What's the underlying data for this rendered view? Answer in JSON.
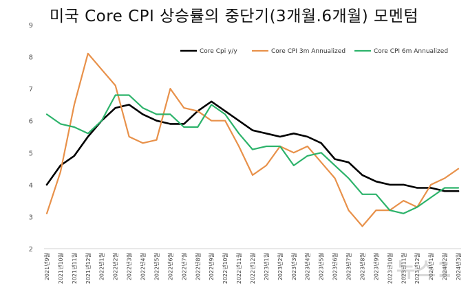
{
  "title": "미국 Core CPI 상승률의 중단기(3개월.6개월) 모멘텀",
  "watermark": "뉴스1",
  "chart_data": {
    "type": "line",
    "ylim": [
      2,
      9
    ],
    "yticks": [
      2,
      3,
      4,
      5,
      6,
      7,
      8,
      9
    ],
    "grid": false,
    "legend_position": "top-right",
    "categories": [
      "2021년9월",
      "2021년10월",
      "2021년11월",
      "2021년12월",
      "2022년1월",
      "2022년2월",
      "2022년3월",
      "2022년4월",
      "2022년5월",
      "2022년6월",
      "2022년7월",
      "2022년8월",
      "2022년9월",
      "2022년10월",
      "2022년11월",
      "2022년12월",
      "2023년1월",
      "2023년2월",
      "2023년3월",
      "2023년4월",
      "2023년5월",
      "2023년6월",
      "2023년7월",
      "2023년8월",
      "2023년9월",
      "2023년10월",
      "2023년11월",
      "2023년12월",
      "2024년1월",
      "2024년2월",
      "2024년3월"
    ],
    "series": [
      {
        "name": "Core Cpi y/y",
        "color": "#000000",
        "values": [
          4.0,
          4.6,
          4.9,
          5.5,
          6.0,
          6.4,
          6.5,
          6.2,
          6.0,
          5.9,
          5.9,
          6.3,
          6.6,
          6.3,
          6.0,
          5.7,
          5.6,
          5.5,
          5.6,
          5.5,
          5.3,
          4.8,
          4.7,
          4.3,
          4.1,
          4.0,
          4.0,
          3.9,
          3.9,
          3.8,
          3.8
        ]
      },
      {
        "name": "Core CPI 3m Annualized",
        "color": "#E8914A",
        "values": [
          3.1,
          4.4,
          6.5,
          8.1,
          7.6,
          7.1,
          5.5,
          5.3,
          5.4,
          7.0,
          6.4,
          6.3,
          6.0,
          6.0,
          5.2,
          4.3,
          4.6,
          5.2,
          5.0,
          5.2,
          4.7,
          4.2,
          3.2,
          2.7,
          3.2,
          3.2,
          3.5,
          3.3,
          4.0,
          4.2,
          4.5
        ]
      },
      {
        "name": "Core CPI 6m Annualized",
        "color": "#2DB36B",
        "values": [
          6.2,
          5.9,
          5.8,
          5.6,
          6.0,
          6.8,
          6.8,
          6.4,
          6.2,
          6.2,
          5.8,
          5.8,
          6.5,
          6.2,
          5.6,
          5.1,
          5.2,
          5.2,
          4.6,
          4.9,
          5.0,
          4.6,
          4.2,
          3.7,
          3.7,
          3.2,
          3.1,
          3.3,
          3.6,
          3.9,
          3.9
        ]
      }
    ]
  }
}
